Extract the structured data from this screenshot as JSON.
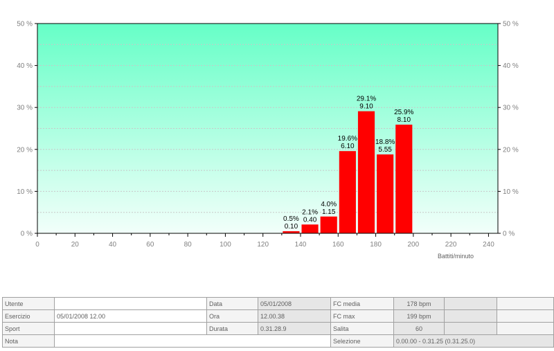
{
  "chart_data": {
    "type": "bar",
    "xlabel": "Battiti/minuto",
    "xlim": [
      0,
      245
    ],
    "ylim": [
      0,
      50
    ],
    "x_ticks": [
      0,
      20,
      40,
      60,
      80,
      100,
      120,
      140,
      160,
      180,
      200,
      220,
      240
    ],
    "y_ticks": [
      0,
      10,
      20,
      30,
      40,
      50
    ],
    "y_tick_labels": [
      "0 %",
      "10 %",
      "20 %",
      "30 %",
      "40 %",
      "50 %"
    ],
    "grid": true,
    "bars": [
      {
        "start": 130,
        "end": 140,
        "percent": 0.5,
        "percent_label": "0.5%",
        "time_label": "0.10"
      },
      {
        "start": 140,
        "end": 150,
        "percent": 2.1,
        "percent_label": "2.1%",
        "time_label": "0.40"
      },
      {
        "start": 150,
        "end": 160,
        "percent": 4.0,
        "percent_label": "4.0%",
        "time_label": "1.15"
      },
      {
        "start": 160,
        "end": 170,
        "percent": 19.6,
        "percent_label": "19.6%",
        "time_label": "6.10"
      },
      {
        "start": 170,
        "end": 180,
        "percent": 29.1,
        "percent_label": "29.1%",
        "time_label": "9.10"
      },
      {
        "start": 180,
        "end": 190,
        "percent": 18.8,
        "percent_label": "18.8%",
        "time_label": "5.55"
      },
      {
        "start": 190,
        "end": 200,
        "percent": 25.9,
        "percent_label": "25.9%",
        "time_label": "8.10"
      }
    ],
    "colors": {
      "bar": "#ff0000",
      "plot_top": "#66ffc7",
      "plot_bottom": "#f2fffa",
      "grid": "#c8c8c8"
    }
  },
  "info": {
    "utente_label": "Utente",
    "utente_value": "",
    "data_label": "Data",
    "data_value": "05/01/2008",
    "fc_media_label": "FC media",
    "fc_media_value": "178 bpm",
    "esercizio_label": "Esercizio",
    "esercizio_value": "05/01/2008 12.00",
    "ora_label": "Ora",
    "ora_value": "12.00.38",
    "fc_max_label": "FC max",
    "fc_max_value": "199 bpm",
    "sport_label": "Sport",
    "sport_value": "",
    "durata_label": "Durata",
    "durata_value": "0.31.28.9",
    "salita_label": "Salita",
    "salita_value": "60",
    "nota_label": "Nota",
    "nota_value": "",
    "selezione_label": "Selezione",
    "selezione_value": "0.00.00 - 0.31.25 (0.31.25.0)"
  }
}
